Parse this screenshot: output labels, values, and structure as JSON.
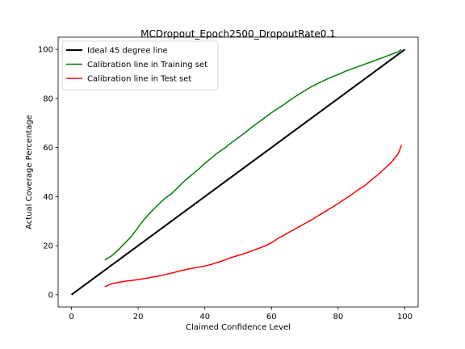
{
  "chart_data": {
    "type": "line",
    "title": "MCDropout_Epoch2500_DropoutRate0.1",
    "xlabel": "Claimed Confidence Level",
    "ylabel": "Actual Coverage Percentage",
    "xlim": [
      -4,
      104
    ],
    "ylim": [
      -5,
      105
    ],
    "xticks": [
      0,
      20,
      40,
      60,
      80,
      100
    ],
    "yticks": [
      0,
      20,
      40,
      60,
      80,
      100
    ],
    "grid": false,
    "legend_position": "top-left",
    "series": [
      {
        "name": "Ideal 45 degree line",
        "color": "#000000",
        "x": [
          0,
          100
        ],
        "y": [
          0,
          100
        ]
      },
      {
        "name": "Calibration line in Training set",
        "color": "#008000",
        "x": [
          10,
          12,
          14,
          16,
          18,
          20,
          22,
          24,
          26,
          28,
          30,
          32,
          34,
          36,
          38,
          40,
          42,
          44,
          46,
          48,
          50,
          52,
          54,
          56,
          58,
          60,
          62,
          64,
          66,
          68,
          70,
          72,
          74,
          76,
          78,
          80,
          82,
          84,
          86,
          88,
          90,
          92,
          94,
          96,
          98,
          99
        ],
        "y": [
          14.2,
          15.8,
          18.2,
          21,
          23.8,
          27.5,
          31,
          34,
          36.7,
          39.2,
          41.2,
          43.8,
          46.5,
          48.8,
          51,
          53.5,
          55.8,
          58,
          59.8,
          62,
          64,
          66,
          68.2,
          70.2,
          72.2,
          74.2,
          76,
          77.8,
          79.8,
          81.5,
          83.2,
          84.8,
          86.2,
          87.5,
          88.7,
          89.8,
          91,
          92,
          93,
          94,
          95,
          96,
          97,
          98,
          99,
          100
        ]
      },
      {
        "name": "Calibration line in Test set",
        "color": "#ff0000",
        "x": [
          10,
          12,
          14,
          16,
          18,
          20,
          22,
          24,
          26,
          28,
          30,
          32,
          34,
          36,
          38,
          40,
          42,
          44,
          46,
          48,
          50,
          52,
          54,
          56,
          58,
          60,
          62,
          64,
          66,
          68,
          70,
          72,
          74,
          76,
          78,
          80,
          82,
          84,
          86,
          88,
          90,
          92,
          94,
          96,
          98,
          99
        ],
        "y": [
          3.2,
          4.5,
          5,
          5.5,
          5.8,
          6.2,
          6.6,
          7.1,
          7.6,
          8.2,
          8.8,
          9.5,
          10.2,
          10.7,
          11.2,
          11.7,
          12.4,
          13.2,
          14.2,
          15.2,
          16,
          16.8,
          17.8,
          18.8,
          19.8,
          21.2,
          23,
          24.5,
          26,
          27.5,
          29,
          30.5,
          32.2,
          33.8,
          35.5,
          37.2,
          39,
          40.8,
          42.8,
          44.5,
          46.8,
          49,
          51.5,
          54,
          57.5,
          61
        ]
      }
    ]
  }
}
